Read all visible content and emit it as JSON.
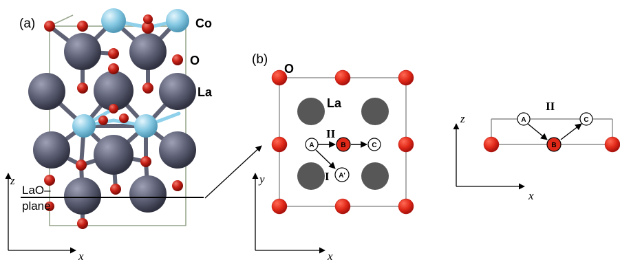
{
  "panel_a": {
    "label": "(a)",
    "atom_labels": {
      "co": "Co",
      "o": "O",
      "la": "La"
    },
    "plane_label_line1": "LaO–",
    "plane_label_line2": "plane",
    "axis_z": "z",
    "axis_x": "x"
  },
  "panel_b": {
    "label": "(b)",
    "o_label": "O",
    "la_label": "La",
    "path_I": "I",
    "path_II": "II",
    "sites": {
      "a": "A",
      "b": "B",
      "c": "C",
      "a_prime": "A'"
    },
    "axis_y": "y",
    "axis_x": "x"
  },
  "panel_side": {
    "path_II": "II",
    "sites": {
      "a": "A",
      "b": "B",
      "c": "C"
    },
    "axis_z": "z",
    "axis_x": "x"
  },
  "colors": {
    "oxygen": "#d42c23",
    "oxygen_dark": "#a5120d",
    "lanthanum": "#5d6075",
    "cobalt": "#86c9e3",
    "la_plane_gray": "#575757",
    "cell_edge": "#9aa890"
  }
}
